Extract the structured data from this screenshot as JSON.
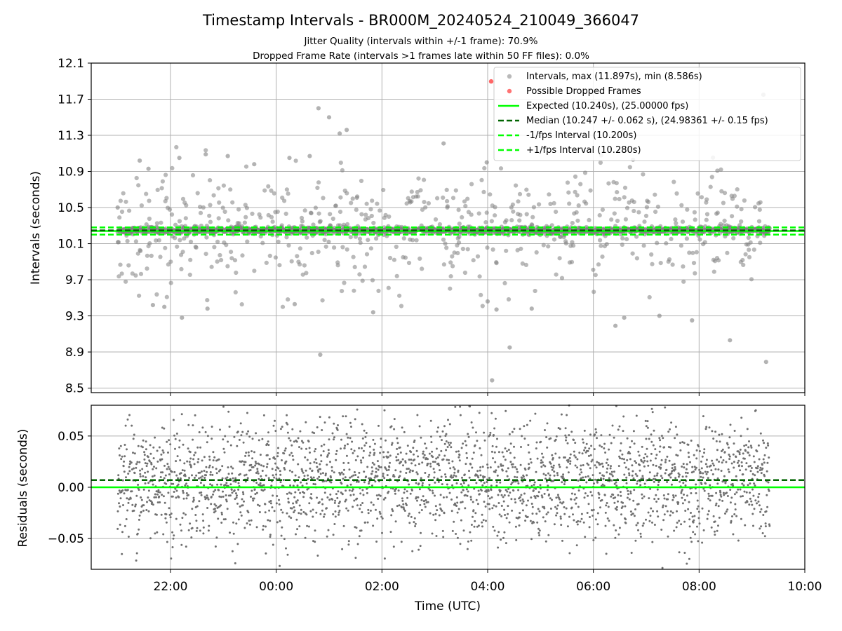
{
  "title": "Timestamp Intervals - BR000M_20240524_210049_366047",
  "subtitle1": "Jitter Quality (intervals within +/-1 frame): 70.9%",
  "subtitle2": "Dropped Frame Rate (intervals >1 frames late within 50 FF files): 0.0%",
  "colors": {
    "intervals": "#808080",
    "dropped": "#ff0000",
    "expected": "#00ff00",
    "median": "#006400",
    "interval_band": "#00ff00",
    "grid": "#b0b0b0"
  },
  "chart_data": [
    {
      "type": "scatter",
      "ylabel": "Intervals (seconds)",
      "xlabel": "",
      "xlim": [
        "20:30",
        "10:00"
      ],
      "ylim": [
        8.45,
        12.1
      ],
      "yticks": [
        "8.5",
        "8.9",
        "9.3",
        "9.7",
        "10.1",
        "10.5",
        "10.9",
        "11.3",
        "11.7",
        "12.1"
      ],
      "grid": true,
      "legend_position": "top-right",
      "legend": [
        "Intervals, max (11.897s), min (8.586s)",
        "Possible Dropped Frames",
        "Expected (10.240s), (25.00000 fps)",
        "Median (10.247 +/- 0.062 s), (24.98361 +/- 0.15 fps)",
        "-1/fps Interval (10.200s)",
        "+1/fps Interval (10.280s)"
      ],
      "time_span": [
        "21:00",
        "09:20"
      ],
      "interval_max": 11.897,
      "interval_min": 8.586,
      "expected": 10.24,
      "median": 10.247,
      "median_std": 0.062,
      "lower_interval": 10.2,
      "upper_interval": 10.28,
      "series": [
        {
          "name": "Intervals",
          "sample_points": [
            [
              "21:00",
              10.5
            ],
            [
              "21:25",
              11.02
            ],
            [
              "21:35",
              10.93
            ],
            [
              "21:40",
              9.42
            ],
            [
              "21:53",
              9.4
            ],
            [
              "22:10",
              11.05
            ],
            [
              "22:13",
              9.28
            ],
            [
              "22:40",
              11.09
            ],
            [
              "22:42",
              9.38
            ],
            [
              "23:05",
              11.07
            ],
            [
              "23:35",
              10.98
            ],
            [
              "00:15",
              11.05
            ],
            [
              "00:21",
              9.43
            ],
            [
              "00:38",
              11.07
            ],
            [
              "00:48",
              11.6
            ],
            [
              "00:50",
              8.87
            ],
            [
              "01:00",
              11.5
            ],
            [
              "01:12",
              11.32
            ],
            [
              "01:20",
              11.36
            ],
            [
              "01:50",
              9.34
            ],
            [
              "03:10",
              11.21
            ],
            [
              "03:59",
              11.0
            ],
            [
              "04:00",
              9.46
            ],
            [
              "04:05",
              8.586
            ],
            [
              "04:10",
              9.37
            ],
            [
              "04:25",
              8.95
            ],
            [
              "04:50",
              9.38
            ],
            [
              "06:25",
              9.19
            ],
            [
              "06:35",
              9.28
            ],
            [
              "06:45",
              11.03
            ],
            [
              "07:15",
              9.3
            ],
            [
              "07:52",
              9.25
            ],
            [
              "08:35",
              9.03
            ],
            [
              "09:13",
              11.75
            ],
            [
              "09:16",
              8.79
            ]
          ]
        },
        {
          "name": "Possible Dropped Frames",
          "points": [
            [
              "04:04",
              11.897
            ]
          ]
        }
      ]
    },
    {
      "type": "scatter",
      "ylabel": "Residuals (seconds)",
      "xlabel": "Time (UTC)",
      "xlim": [
        "20:30",
        "10:00"
      ],
      "xticks": [
        "22:00",
        "00:00",
        "02:00",
        "04:00",
        "06:00",
        "08:00",
        "10:00"
      ],
      "ylim": [
        -0.08,
        0.08
      ],
      "yticks": [
        "−0.05",
        "0.00",
        "0.05"
      ],
      "grid": true,
      "expected": 0.0,
      "median": 0.007,
      "residual_std": 0.03
    }
  ]
}
